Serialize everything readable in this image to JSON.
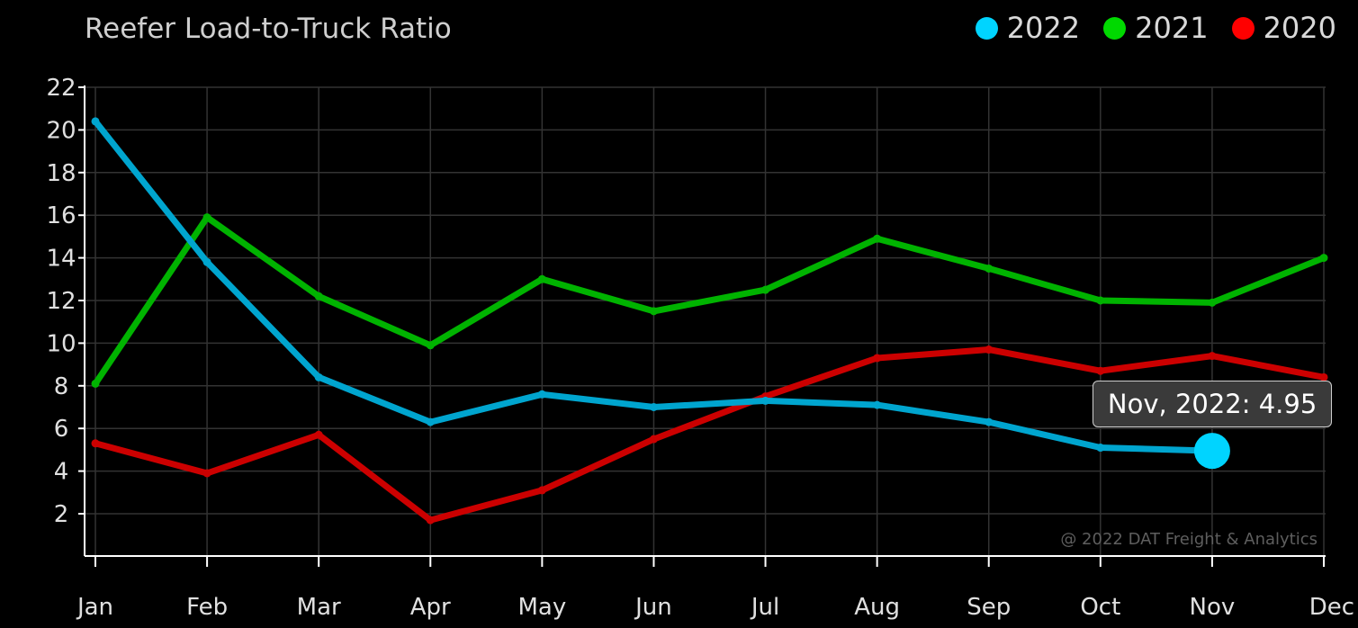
{
  "chart_data": {
    "type": "line",
    "title": "Reefer Load-to-Truck Ratio",
    "categories": [
      "Jan",
      "Feb",
      "Mar",
      "Apr",
      "May",
      "Jun",
      "Jul",
      "Aug",
      "Sep",
      "Oct",
      "Nov",
      "Dec"
    ],
    "yticks": [
      "2",
      "4",
      "6",
      "8",
      "10",
      "12",
      "14",
      "16",
      "18",
      "20",
      "22"
    ],
    "ylim": [
      0,
      22
    ],
    "grid": true,
    "legend_position": "top-right",
    "series": [
      {
        "name": "2020",
        "color": "#cc0000",
        "legend_color": "#ff0000",
        "values": [
          5.3,
          3.9,
          5.7,
          1.7,
          3.1,
          5.5,
          7.5,
          9.3,
          9.7,
          8.7,
          9.4,
          8.4
        ]
      },
      {
        "name": "2021",
        "color": "#00b300",
        "legend_color": "#00d900",
        "values": [
          8.1,
          15.9,
          12.2,
          9.9,
          13.0,
          11.5,
          12.5,
          14.9,
          13.5,
          12.0,
          11.9,
          14.0
        ]
      },
      {
        "name": "2022",
        "color": "#00a5cf",
        "legend_color": "#00d4ff",
        "values": [
          20.4,
          13.8,
          8.4,
          6.3,
          7.6,
          7.0,
          7.3,
          7.1,
          6.3,
          5.1,
          4.95,
          null
        ]
      }
    ],
    "legend_order": [
      "2022",
      "2021",
      "2020"
    ],
    "tooltip": {
      "text": "Nov, 2022: 4.95",
      "series": "2022",
      "category": "Nov",
      "value": 4.95
    },
    "watermark": "@ 2022 DAT Freight & Analytics"
  }
}
